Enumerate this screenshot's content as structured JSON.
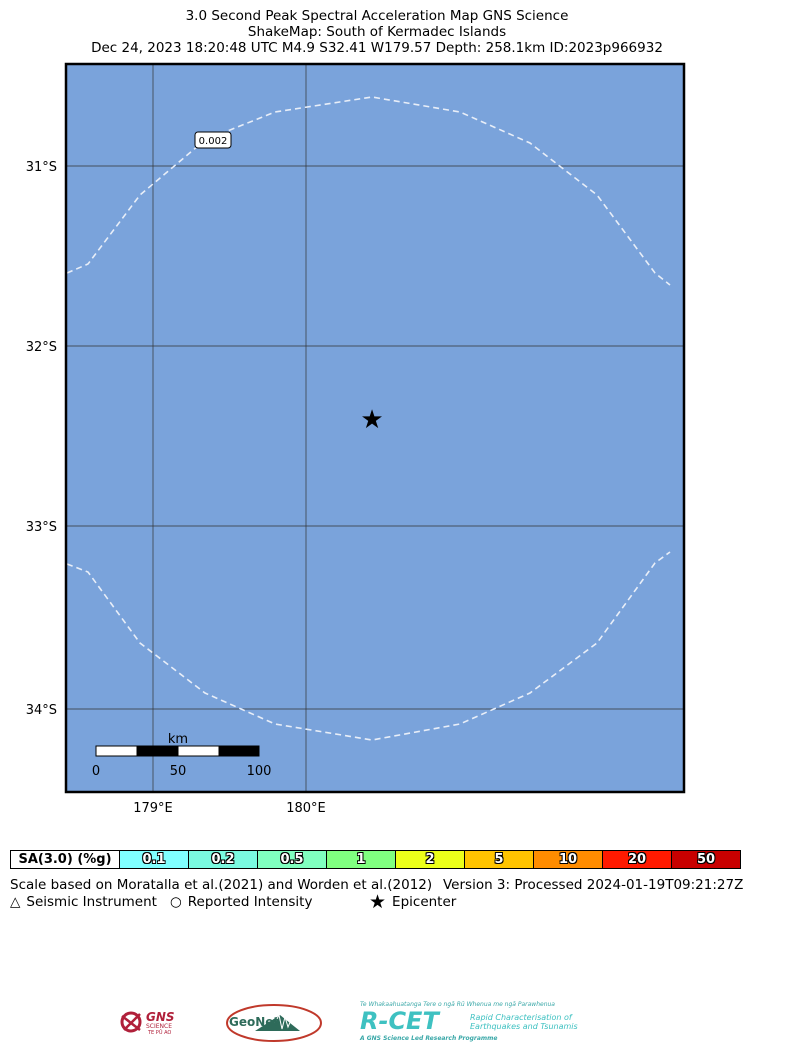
{
  "header": {
    "title": "3.0 Second Peak Spectral Acceleration Map GNS Science",
    "subtitle": "ShakeMap: South of Kermadec Islands",
    "event_line": "Dec 24, 2023 18:20:48 UTC M4.9 S32.41 W179.57 Depth: 258.1km ID:2023p966932"
  },
  "map": {
    "background_color": "#7aa3db",
    "contour_color": "#e8eef8",
    "lat_labels": [
      "31°S",
      "32°S",
      "33°S",
      "34°S"
    ],
    "lon_labels": [
      "179°E",
      "180°E"
    ],
    "contour_label": "0.002",
    "epicenter_symbol": "★",
    "scalebar": {
      "unit": "km",
      "ticks": [
        "0",
        "50",
        "100"
      ]
    }
  },
  "legend": {
    "header": "SA(3.0) (%g)",
    "bins": [
      {
        "label": "0.1",
        "color": "#80ffff"
      },
      {
        "label": "0.2",
        "color": "#7afae0"
      },
      {
        "label": "0.5",
        "color": "#80ffbf"
      },
      {
        "label": "1",
        "color": "#80ff80"
      },
      {
        "label": "2",
        "color": "#ecff1a"
      },
      {
        "label": "5",
        "color": "#ffc400"
      },
      {
        "label": "10",
        "color": "#ff8c00"
      },
      {
        "label": "20",
        "color": "#ff1a00"
      },
      {
        "label": "50",
        "color": "#c80000"
      }
    ]
  },
  "notes": {
    "scale_note": "Scale based on Moratalla et al.(2021) and Worden et al.(2012)",
    "version_note": "Version 3: Processed 2024-01-19T09:21:27Z",
    "instrument_symbol": "△",
    "instrument_label": "Seismic Instrument",
    "intensity_symbol": "○",
    "intensity_label": "Reported Intensity",
    "epicenter_symbol": "★",
    "epicenter_label": "Epicenter"
  },
  "logos": {
    "gns_name": "GNS",
    "gns_sub": "SCIENCE",
    "gns_tag": "TE PŪ AO",
    "geonet": "GeoNet",
    "rcet_tagline": "Te Whakaahuatanga Tere o ngā Rū Whenua me ngā Parawhenua",
    "rcet_name": "R-CET",
    "rcet_desc1": "Rapid Characterisation of",
    "rcet_desc2": "Earthquakes and Tsunamis",
    "rcet_footer": "A GNS Science Led Research Programme"
  }
}
